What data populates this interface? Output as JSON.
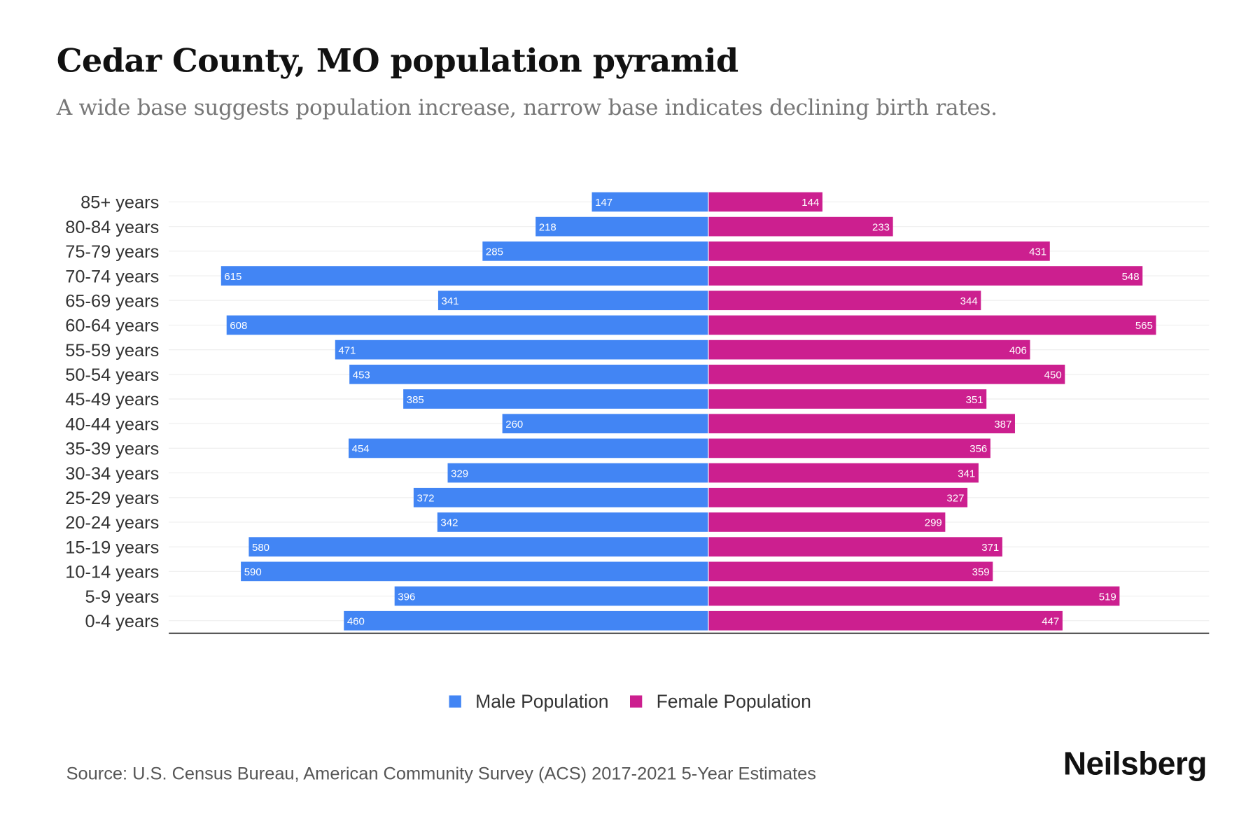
{
  "title": "Cedar County, MO population pyramid",
  "subtitle": "A wide base suggests population increase, narrow base indicates declining birth rates.",
  "source": "Source: U.S. Census Bureau, American Community Survey (ACS) 2017-2021 5-Year Estimates",
  "logo": "Neilsberg",
  "colors": {
    "male": "#4285f4",
    "female": "#cc1f8f"
  },
  "chart_data": {
    "type": "bar",
    "orientation": "horizontal-pyramid",
    "categories": [
      "85+ years",
      "80-84 years",
      "75-79 years",
      "70-74 years",
      "65-69 years",
      "60-64 years",
      "55-59 years",
      "50-54 years",
      "45-49 years",
      "40-44 years",
      "35-39 years",
      "30-34 years",
      "25-29 years",
      "20-24 years",
      "15-19 years",
      "10-14 years",
      "5-9 years",
      "0-4 years"
    ],
    "series": [
      {
        "name": "Male Population",
        "values": [
          147,
          218,
          285,
          615,
          341,
          608,
          471,
          453,
          385,
          260,
          454,
          329,
          372,
          342,
          580,
          590,
          396,
          460
        ]
      },
      {
        "name": "Female Population",
        "values": [
          144,
          233,
          431,
          548,
          344,
          565,
          406,
          450,
          351,
          387,
          356,
          341,
          327,
          299,
          371,
          359,
          519,
          447
        ]
      }
    ],
    "xlim": [
      -656,
      635
    ],
    "legend": "bottom-center",
    "grid": true
  }
}
